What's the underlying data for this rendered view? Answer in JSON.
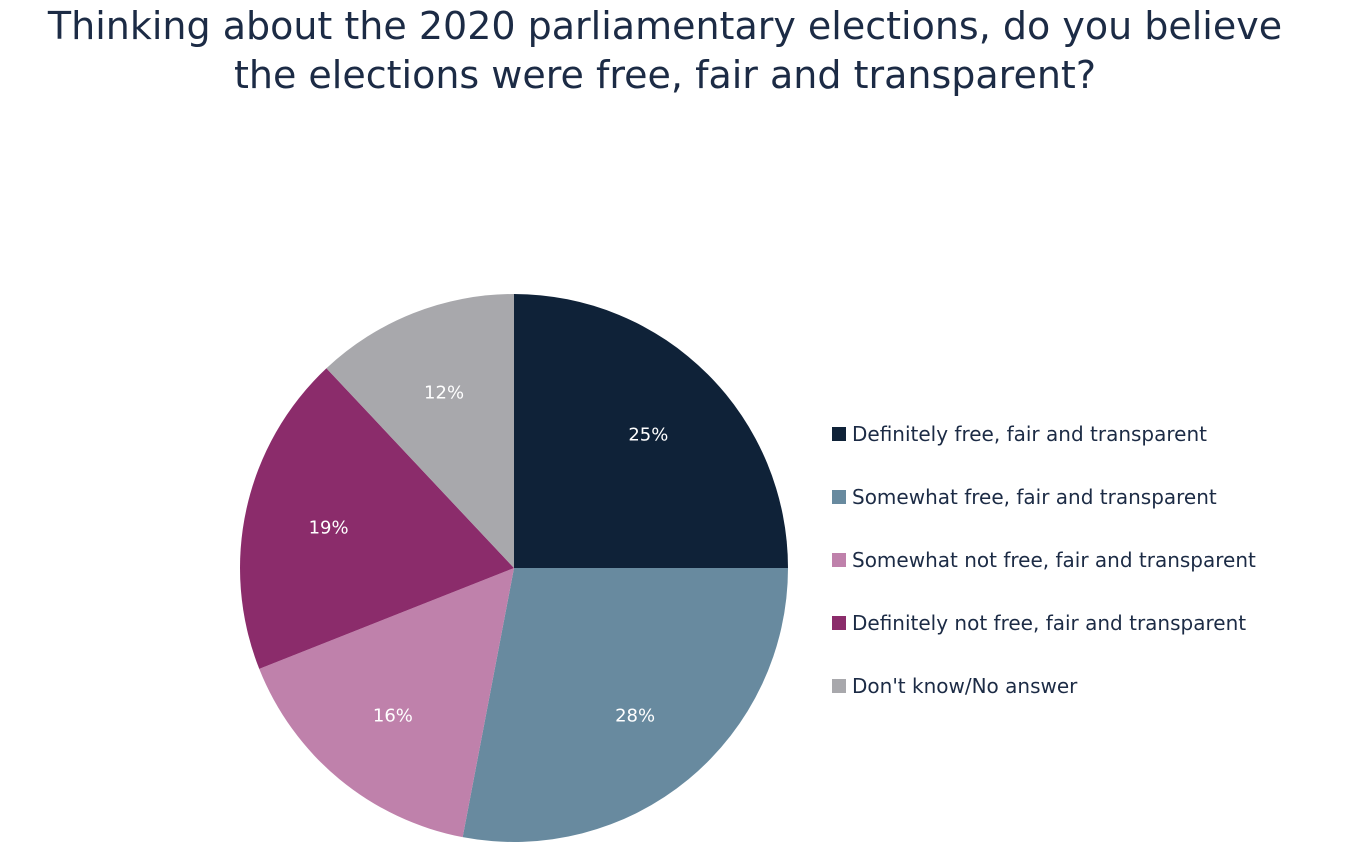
{
  "chart_data": {
    "type": "pie",
    "title": [
      "Thinking about the 2020 parliamentary elections, do you believe",
      "the elections were free, fair and transparent?"
    ],
    "legend_position": "right",
    "slices": [
      {
        "name": "Definitely free, fair and transparent",
        "value": 25,
        "label": "25%",
        "color": "#0f2238"
      },
      {
        "name": "Somewhat free, fair and transparent",
        "value": 28,
        "label": "28%",
        "color": "#688a9f"
      },
      {
        "name": "Somewhat not free, fair and transparent",
        "value": 16,
        "label": "16%",
        "color": "#bf81ab"
      },
      {
        "name": "Definitely not free, fair and transparent",
        "value": 19,
        "label": "19%",
        "color": "#8b2c6b"
      },
      {
        "name": "Don't know/No answer",
        "value": 12,
        "label": "12%",
        "color": "#a8a8ac"
      }
    ]
  }
}
